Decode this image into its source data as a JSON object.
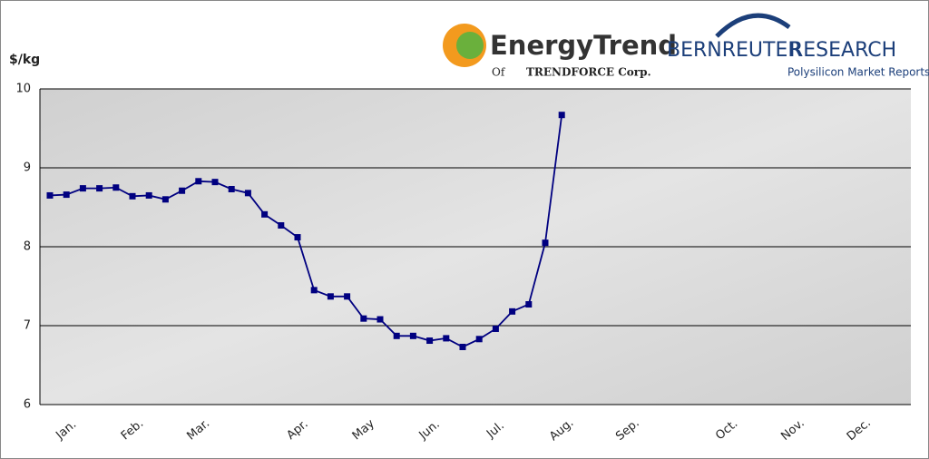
{
  "chart_data": {
    "type": "line",
    "y_label": "$/kg",
    "categories": [
      null,
      "Jan.",
      null,
      null,
      null,
      "Feb.",
      null,
      null,
      null,
      "Mar.",
      null,
      null,
      null,
      null,
      null,
      "Apr.",
      null,
      null,
      null,
      "May",
      null,
      null,
      null,
      "Jun.",
      null,
      null,
      null,
      "Jul.",
      null,
      null,
      null,
      "Aug.",
      null,
      null,
      null,
      "Sep.",
      null,
      null,
      null,
      null,
      null,
      "Oct.",
      null,
      null,
      null,
      "Nov.",
      null,
      null,
      null,
      "Dec.",
      null,
      null
    ],
    "values": [
      8.65,
      8.66,
      8.74,
      8.74,
      8.75,
      8.64,
      8.65,
      8.6,
      8.71,
      8.83,
      8.82,
      8.73,
      8.68,
      8.41,
      8.27,
      8.12,
      7.45,
      7.37,
      7.37,
      7.09,
      7.08,
      6.87,
      6.87,
      6.81,
      6.84,
      6.73,
      6.83,
      6.96,
      7.18,
      7.27,
      8.05,
      9.67,
      null,
      null,
      null,
      null,
      null,
      null,
      null,
      null,
      null,
      null,
      null,
      null,
      null,
      null,
      null,
      null,
      null,
      null,
      null,
      null
    ],
    "color": "#000080",
    "ylim": [
      6,
      10
    ],
    "yticks": [
      6,
      7,
      8,
      9,
      10
    ],
    "grid": true
  },
  "logos": {
    "energytrend": "EnergyTrend",
    "of": "Of",
    "trendforce": "TRENDFORCE Corp.",
    "bernreuter": "BERNREUTER",
    "research": "RESEARCH",
    "tagline": "Polysilicon Market Reports"
  }
}
